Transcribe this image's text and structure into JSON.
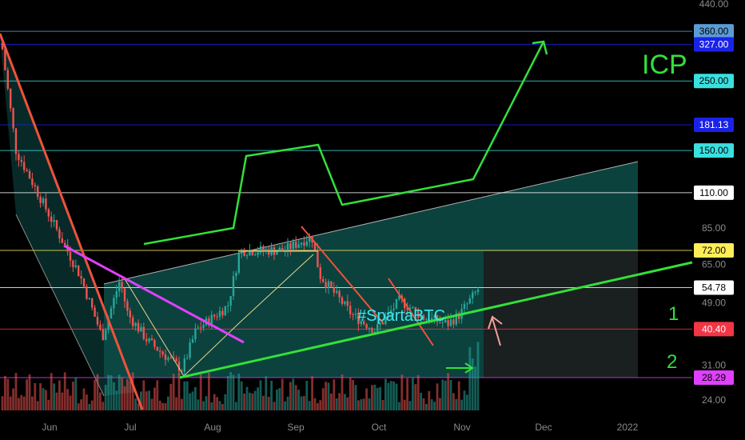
{
  "chart_data": {
    "type": "candlestick",
    "title": "ICP",
    "watermark": "#SpartaBTC",
    "x_ticks": [
      "Jun",
      "Jul",
      "Aug",
      "Sep",
      "Oct",
      "Nov",
      "Dec",
      "2022"
    ],
    "y_scale": "log",
    "y_ticks": [
      "440.00",
      "85.00",
      "65.00",
      "49.00",
      "31.00",
      "24.00"
    ],
    "y_range": [
      22,
      450
    ],
    "price_levels": [
      {
        "label": "360.00",
        "value": 360,
        "color": "#5b9bd5",
        "text_color": "#000000"
      },
      {
        "label": "327.00",
        "value": 327,
        "color": "#1a22e8",
        "text_color": "#ffffff"
      },
      {
        "label": "250.00",
        "value": 250,
        "color": "#3ae0e0",
        "text_color": "#000000"
      },
      {
        "label": "181.13",
        "value": 181.13,
        "color": "#1a22e8",
        "text_color": "#ffffff"
      },
      {
        "label": "150.00",
        "value": 150,
        "color": "#3ae0e0",
        "text_color": "#000000"
      },
      {
        "label": "110.00",
        "value": 110,
        "color": "#ffffff",
        "text_color": "#000000"
      },
      {
        "label": "72.00",
        "value": 72,
        "color": "#ffee58",
        "text_color": "#000000"
      },
      {
        "label": "54.78",
        "value": 54.78,
        "color": "#ffffff",
        "text_color": "#000000"
      },
      {
        "label": "40.40",
        "value": 40.4,
        "color": "#f23645",
        "text_color": "#ffffff"
      },
      {
        "label": "28.29",
        "value": 28.29,
        "color": "#e040fb",
        "text_color": "#000000"
      }
    ],
    "annotations": [
      {
        "text": "1"
      },
      {
        "text": "2"
      }
    ],
    "colors": {
      "up": "#26a69a",
      "down": "#ef5350",
      "projection": "#33e03a",
      "trendline_red": "#f0523c",
      "trendline_magenta": "#e040fb",
      "channel_fill": "#0d4d48"
    }
  }
}
